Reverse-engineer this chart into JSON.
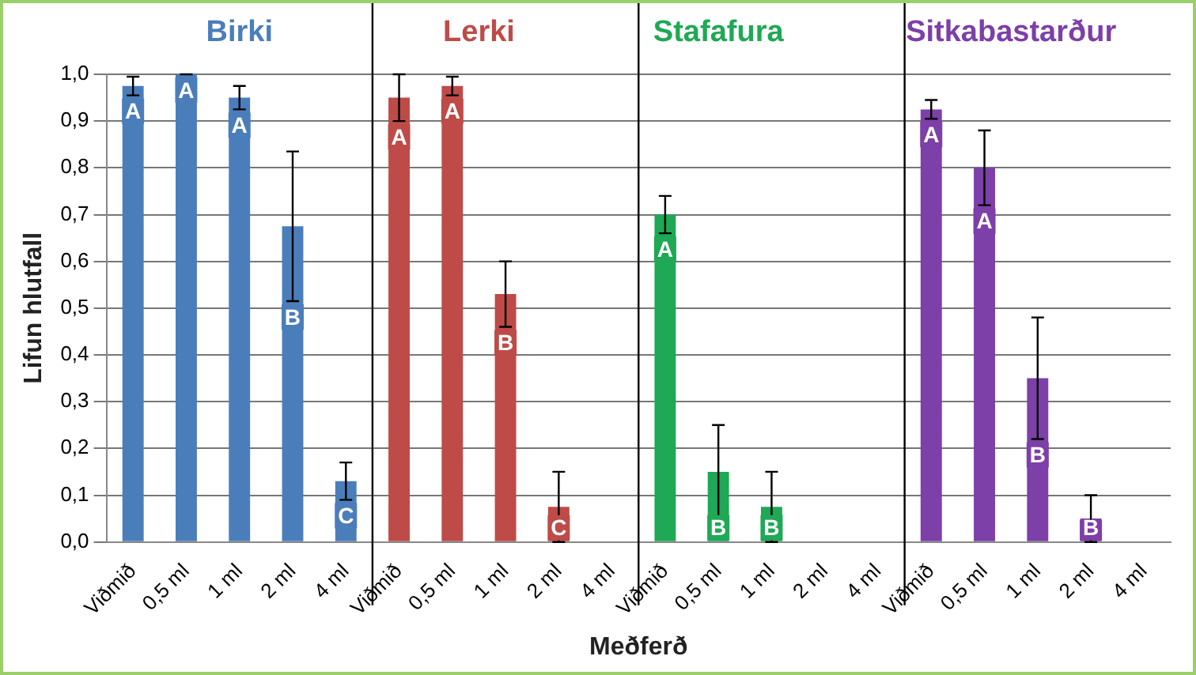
{
  "chart_data": {
    "type": "bar",
    "xlabel": "Meðferð",
    "ylabel": "Lifun hlutfall",
    "categories": [
      "Viðmið",
      "0,5 ml",
      "1 ml",
      "2 ml",
      "4 ml",
      "Viðmið",
      "0,5 ml",
      "1 ml",
      "2 ml",
      "4 ml",
      "Viðmið",
      "0,5 ml",
      "1 ml",
      "2 ml",
      "4 ml",
      "Viðmið",
      "0,5 ml",
      "1 ml",
      "2 ml",
      "4 ml"
    ],
    "series": [
      {
        "name": "Birki",
        "color": "#4a7ebb",
        "values": [
          0.975,
          1.0,
          0.95,
          0.675,
          0.13,
          null,
          null,
          null,
          null,
          null,
          null,
          null,
          null,
          null,
          null,
          null,
          null,
          null,
          null,
          null
        ],
        "errors": [
          0.02,
          0,
          0.025,
          0.16,
          0.04,
          null,
          null,
          null,
          null,
          null,
          null,
          null,
          null,
          null,
          null,
          null,
          null,
          null,
          null,
          null
        ],
        "value_labels": [
          "A",
          "A",
          "A",
          "B",
          "C",
          null,
          null,
          null,
          null,
          null,
          null,
          null,
          null,
          null,
          null,
          null,
          null,
          null,
          null,
          null
        ]
      },
      {
        "name": "Lerki",
        "color": "#be4b48",
        "values": [
          null,
          null,
          null,
          null,
          null,
          0.95,
          0.975,
          0.53,
          0.075,
          0,
          null,
          null,
          null,
          null,
          null,
          null,
          null,
          null,
          null,
          null
        ],
        "errors": [
          null,
          null,
          null,
          null,
          null,
          0.05,
          0.02,
          0.07,
          0.075,
          null,
          null,
          null,
          null,
          null,
          null,
          null,
          null,
          null,
          null,
          null
        ],
        "value_labels": [
          null,
          null,
          null,
          null,
          null,
          "A",
          "A",
          "B",
          "C",
          null,
          null,
          null,
          null,
          null,
          null,
          null,
          null,
          null,
          null,
          null
        ]
      },
      {
        "name": "Stafafura",
        "color": "#1fa855",
        "values": [
          null,
          null,
          null,
          null,
          null,
          null,
          null,
          null,
          null,
          null,
          0.7,
          0.15,
          0.075,
          0,
          0,
          null,
          null,
          null,
          null,
          null
        ],
        "errors": [
          null,
          null,
          null,
          null,
          null,
          null,
          null,
          null,
          null,
          null,
          0.04,
          0.1,
          0.075,
          null,
          null,
          null,
          null,
          null,
          null,
          null
        ],
        "value_labels": [
          null,
          null,
          null,
          null,
          null,
          null,
          null,
          null,
          null,
          null,
          "A",
          "B",
          "B",
          null,
          null,
          null,
          null,
          null,
          null,
          null
        ]
      },
      {
        "name": "Sitkabastarður",
        "color": "#7d3fa8",
        "values": [
          null,
          null,
          null,
          null,
          null,
          null,
          null,
          null,
          null,
          null,
          null,
          null,
          null,
          null,
          null,
          0.925,
          0.8,
          0.35,
          0.05,
          0
        ],
        "errors": [
          null,
          null,
          null,
          null,
          null,
          null,
          null,
          null,
          null,
          null,
          null,
          null,
          null,
          null,
          null,
          0.02,
          0.08,
          0.13,
          0.05,
          null
        ],
        "value_labels": [
          null,
          null,
          null,
          null,
          null,
          null,
          null,
          null,
          null,
          null,
          null,
          null,
          null,
          null,
          null,
          "A",
          "A",
          "B",
          "B",
          null
        ]
      }
    ],
    "ylim": [
      0,
      1
    ],
    "yticks": [
      {
        "value": 0,
        "label": "0,0"
      },
      {
        "value": 0.1,
        "label": "0,1"
      },
      {
        "value": 0.2,
        "label": "0,2"
      },
      {
        "value": 0.3,
        "label": "0,3"
      },
      {
        "value": 0.4,
        "label": "0,4"
      },
      {
        "value": 0.5,
        "label": "0,5"
      },
      {
        "value": 0.6,
        "label": "0,6"
      },
      {
        "value": 0.7,
        "label": "0,7"
      },
      {
        "value": 0.8,
        "label": "0,8"
      },
      {
        "value": 0.9,
        "label": "0,9"
      },
      {
        "value": 1,
        "label": "1,0"
      }
    ],
    "grid": "y",
    "legend": false
  }
}
